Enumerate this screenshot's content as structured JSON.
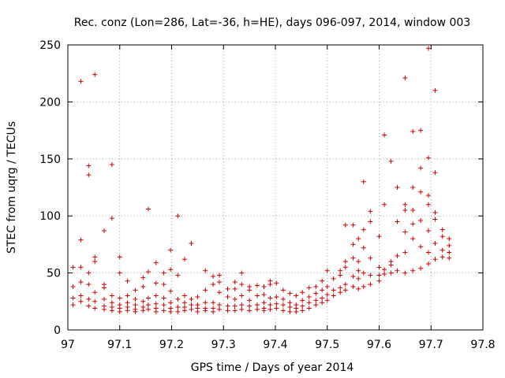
{
  "chart_data": {
    "type": "scatter",
    "title": "Rec. conz (Lon=286, Lat=-36, h=HE), days 096-097, 2014, window 003",
    "xlabel": "GPS time / Days of year 2014",
    "ylabel": "STEC from uqrg / TECUs",
    "xlim": [
      97,
      97.8
    ],
    "ylim": [
      0,
      250
    ],
    "xticks": [
      "97",
      "97.1",
      "97.2",
      "97.3",
      "97.4",
      "97.5",
      "97.6",
      "97.7",
      "97.8"
    ],
    "yticks": [
      "0",
      "50",
      "100",
      "150",
      "200",
      "250"
    ],
    "grid": true,
    "marker": "plus",
    "color": "#d00000",
    "series": [
      {
        "name": "STEC",
        "points": [
          [
            97.01,
            55
          ],
          [
            97.01,
            38
          ],
          [
            97.01,
            28
          ],
          [
            97.01,
            22
          ],
          [
            97.025,
            218
          ],
          [
            97.025,
            79
          ],
          [
            97.025,
            55
          ],
          [
            97.025,
            42
          ],
          [
            97.025,
            30
          ],
          [
            97.025,
            25
          ],
          [
            97.04,
            144
          ],
          [
            97.04,
            136
          ],
          [
            97.04,
            50
          ],
          [
            97.04,
            40
          ],
          [
            97.04,
            27
          ],
          [
            97.04,
            21
          ],
          [
            97.052,
            224
          ],
          [
            97.052,
            64
          ],
          [
            97.052,
            60
          ],
          [
            97.052,
            33
          ],
          [
            97.052,
            25
          ],
          [
            97.052,
            19
          ],
          [
            97.07,
            87
          ],
          [
            97.07,
            40
          ],
          [
            97.07,
            37
          ],
          [
            97.07,
            27
          ],
          [
            97.07,
            21
          ],
          [
            97.07,
            18
          ],
          [
            97.085,
            145
          ],
          [
            97.085,
            98
          ],
          [
            97.085,
            30
          ],
          [
            97.085,
            24
          ],
          [
            97.085,
            20
          ],
          [
            97.085,
            17
          ],
          [
            97.1,
            64
          ],
          [
            97.1,
            50
          ],
          [
            97.1,
            28
          ],
          [
            97.1,
            22
          ],
          [
            97.1,
            19
          ],
          [
            97.1,
            16
          ],
          [
            97.115,
            43
          ],
          [
            97.115,
            30
          ],
          [
            97.115,
            24
          ],
          [
            97.115,
            20
          ],
          [
            97.115,
            17
          ],
          [
            97.13,
            35
          ],
          [
            97.13,
            27
          ],
          [
            97.13,
            22
          ],
          [
            97.13,
            18
          ],
          [
            97.13,
            16
          ],
          [
            97.145,
            46
          ],
          [
            97.145,
            38
          ],
          [
            97.145,
            25
          ],
          [
            97.145,
            20
          ],
          [
            97.145,
            17
          ],
          [
            97.155,
            106
          ],
          [
            97.155,
            51
          ],
          [
            97.155,
            28
          ],
          [
            97.155,
            22
          ],
          [
            97.155,
            18
          ],
          [
            97.17,
            59
          ],
          [
            97.17,
            41
          ],
          [
            97.17,
            30
          ],
          [
            97.17,
            23
          ],
          [
            97.17,
            19
          ],
          [
            97.17,
            16
          ],
          [
            97.185,
            50
          ],
          [
            97.185,
            40
          ],
          [
            97.185,
            28
          ],
          [
            97.185,
            22
          ],
          [
            97.185,
            17
          ],
          [
            97.198,
            70
          ],
          [
            97.198,
            53
          ],
          [
            97.198,
            34
          ],
          [
            97.198,
            24
          ],
          [
            97.198,
            19
          ],
          [
            97.198,
            16
          ],
          [
            97.212,
            100
          ],
          [
            97.212,
            48
          ],
          [
            97.212,
            27
          ],
          [
            97.212,
            20
          ],
          [
            97.212,
            16
          ],
          [
            97.225,
            62
          ],
          [
            97.225,
            30
          ],
          [
            97.225,
            24
          ],
          [
            97.225,
            20
          ],
          [
            97.225,
            17
          ],
          [
            97.238,
            76
          ],
          [
            97.238,
            27
          ],
          [
            97.238,
            22
          ],
          [
            97.238,
            18
          ],
          [
            97.25,
            29
          ],
          [
            97.25,
            22
          ],
          [
            97.25,
            19
          ],
          [
            97.25,
            16
          ],
          [
            97.265,
            52
          ],
          [
            97.265,
            35
          ],
          [
            97.265,
            24
          ],
          [
            97.265,
            19
          ],
          [
            97.265,
            17
          ],
          [
            97.28,
            47
          ],
          [
            97.28,
            40
          ],
          [
            97.28,
            24
          ],
          [
            97.28,
            19
          ],
          [
            97.28,
            16
          ],
          [
            97.292,
            48
          ],
          [
            97.292,
            42
          ],
          [
            97.292,
            33
          ],
          [
            97.292,
            22
          ],
          [
            97.292,
            18
          ],
          [
            97.308,
            36
          ],
          [
            97.308,
            29
          ],
          [
            97.308,
            21
          ],
          [
            97.308,
            17
          ],
          [
            97.322,
            42
          ],
          [
            97.322,
            36
          ],
          [
            97.322,
            27
          ],
          [
            97.322,
            21
          ],
          [
            97.322,
            17
          ],
          [
            97.335,
            50
          ],
          [
            97.335,
            40
          ],
          [
            97.335,
            30
          ],
          [
            97.335,
            22
          ],
          [
            97.335,
            18
          ],
          [
            97.35,
            38
          ],
          [
            97.35,
            35
          ],
          [
            97.35,
            26
          ],
          [
            97.35,
            21
          ],
          [
            97.35,
            17
          ],
          [
            97.365,
            39
          ],
          [
            97.365,
            30
          ],
          [
            97.365,
            22
          ],
          [
            97.365,
            18
          ],
          [
            97.378,
            38
          ],
          [
            97.378,
            31
          ],
          [
            97.378,
            24
          ],
          [
            97.378,
            19
          ],
          [
            97.378,
            17
          ],
          [
            97.39,
            43
          ],
          [
            97.39,
            40
          ],
          [
            97.39,
            28
          ],
          [
            97.39,
            22
          ],
          [
            97.39,
            18
          ],
          [
            97.402,
            41
          ],
          [
            97.402,
            29
          ],
          [
            97.402,
            23
          ],
          [
            97.402,
            19
          ],
          [
            97.415,
            35
          ],
          [
            97.415,
            27
          ],
          [
            97.415,
            22
          ],
          [
            97.415,
            17
          ],
          [
            97.428,
            32
          ],
          [
            97.428,
            24
          ],
          [
            97.428,
            20
          ],
          [
            97.428,
            16
          ],
          [
            97.44,
            30
          ],
          [
            97.44,
            22
          ],
          [
            97.44,
            19
          ],
          [
            97.44,
            16
          ],
          [
            97.452,
            33
          ],
          [
            97.452,
            26
          ],
          [
            97.452,
            21
          ],
          [
            97.452,
            17
          ],
          [
            97.465,
            37
          ],
          [
            97.465,
            29
          ],
          [
            97.465,
            24
          ],
          [
            97.465,
            19
          ],
          [
            97.478,
            38
          ],
          [
            97.478,
            32
          ],
          [
            97.478,
            26
          ],
          [
            97.478,
            22
          ],
          [
            97.49,
            43
          ],
          [
            97.49,
            35
          ],
          [
            97.49,
            28
          ],
          [
            97.49,
            24
          ],
          [
            97.5,
            52
          ],
          [
            97.5,
            38
          ],
          [
            97.5,
            31
          ],
          [
            97.5,
            26
          ],
          [
            97.512,
            45
          ],
          [
            97.512,
            35
          ],
          [
            97.512,
            30
          ],
          [
            97.525,
            52
          ],
          [
            97.525,
            48
          ],
          [
            97.525,
            37
          ],
          [
            97.525,
            33
          ],
          [
            97.535,
            92
          ],
          [
            97.535,
            60
          ],
          [
            97.535,
            55
          ],
          [
            97.535,
            40
          ],
          [
            97.535,
            35
          ],
          [
            97.55,
            92
          ],
          [
            97.55,
            75
          ],
          [
            97.55,
            63
          ],
          [
            97.55,
            47
          ],
          [
            97.55,
            38
          ],
          [
            97.56,
            80
          ],
          [
            97.56,
            60
          ],
          [
            97.56,
            52
          ],
          [
            97.56,
            45
          ],
          [
            97.56,
            36
          ],
          [
            97.57,
            130
          ],
          [
            97.57,
            88
          ],
          [
            97.57,
            72
          ],
          [
            97.57,
            50
          ],
          [
            97.57,
            38
          ],
          [
            97.583,
            104
          ],
          [
            97.583,
            95
          ],
          [
            97.583,
            63
          ],
          [
            97.583,
            48
          ],
          [
            97.583,
            40
          ],
          [
            97.6,
            82
          ],
          [
            97.6,
            55
          ],
          [
            97.6,
            48
          ],
          [
            97.6,
            43
          ],
          [
            97.61,
            171
          ],
          [
            97.61,
            110
          ],
          [
            97.61,
            53
          ],
          [
            97.61,
            49
          ],
          [
            97.623,
            148
          ],
          [
            97.623,
            60
          ],
          [
            97.623,
            57
          ],
          [
            97.623,
            50
          ],
          [
            97.635,
            125
          ],
          [
            97.635,
            95
          ],
          [
            97.635,
            65
          ],
          [
            97.635,
            52
          ],
          [
            97.65,
            221
          ],
          [
            97.65,
            110
          ],
          [
            97.65,
            105
          ],
          [
            97.65,
            86
          ],
          [
            97.65,
            68
          ],
          [
            97.65,
            50
          ],
          [
            97.665,
            174
          ],
          [
            97.665,
            125
          ],
          [
            97.665,
            105
          ],
          [
            97.665,
            93
          ],
          [
            97.665,
            80
          ],
          [
            97.665,
            52
          ],
          [
            97.68,
            175
          ],
          [
            97.68,
            142
          ],
          [
            97.68,
            121
          ],
          [
            97.68,
            96
          ],
          [
            97.68,
            73
          ],
          [
            97.68,
            54
          ],
          [
            97.695,
            247
          ],
          [
            97.695,
            151
          ],
          [
            97.695,
            118
          ],
          [
            97.695,
            110
          ],
          [
            97.695,
            87
          ],
          [
            97.695,
            68
          ],
          [
            97.695,
            58
          ],
          [
            97.708,
            210
          ],
          [
            97.708,
            138
          ],
          [
            97.708,
            103
          ],
          [
            97.708,
            97
          ],
          [
            97.708,
            76
          ],
          [
            97.708,
            62
          ],
          [
            97.722,
            88
          ],
          [
            97.722,
            82
          ],
          [
            97.722,
            70
          ],
          [
            97.722,
            64
          ],
          [
            97.735,
            80
          ],
          [
            97.735,
            74
          ],
          [
            97.735,
            68
          ],
          [
            97.735,
            63
          ]
        ]
      }
    ]
  }
}
